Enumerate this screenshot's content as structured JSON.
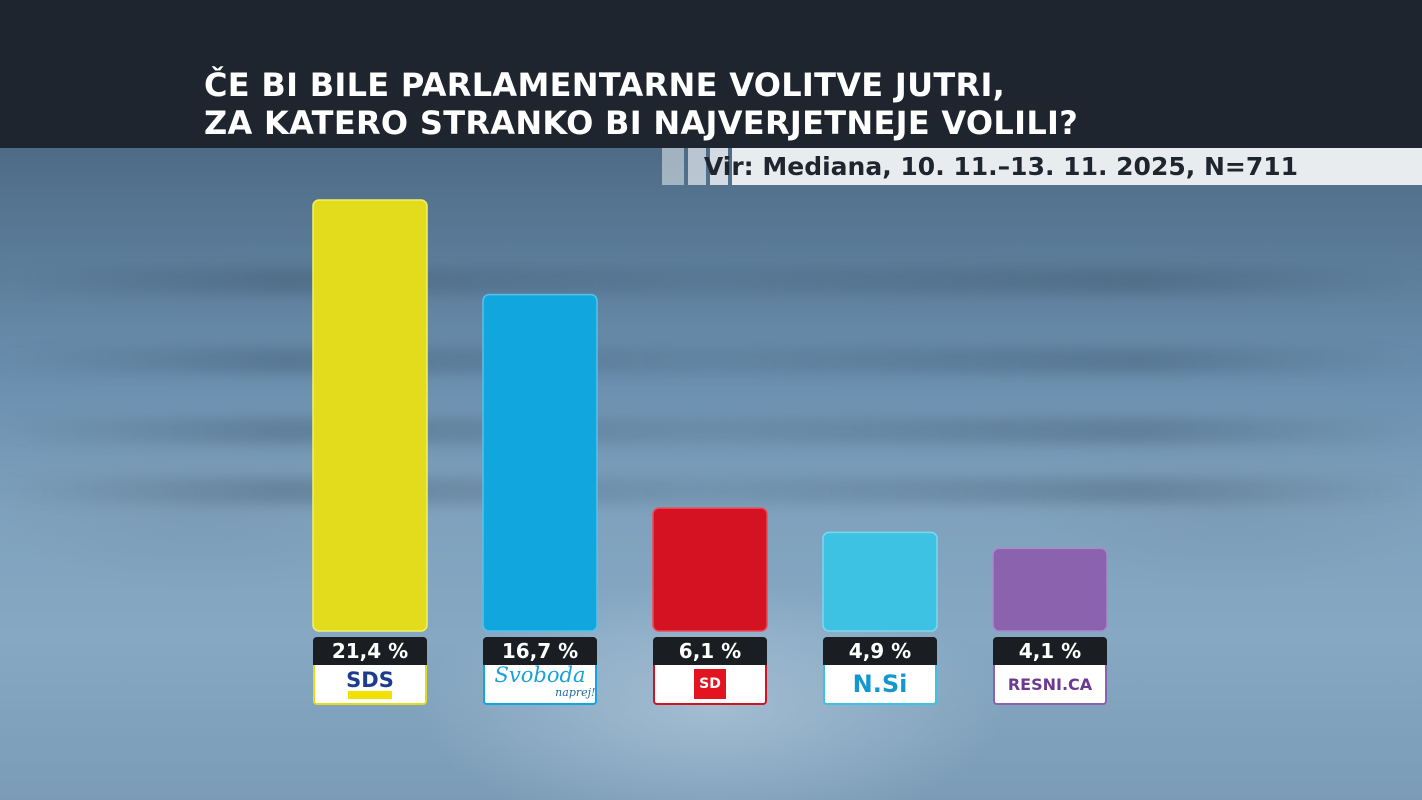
{
  "title": {
    "line1": "ČE BI BILE PARLAMENTARNE VOLITVE JUTRI,",
    "line2": "ZA KATERO STRANKO BI NAJVERJETNEJE VOLILI?"
  },
  "source": "Vir: Mediana, 10. 11.–13. 11. 2025, N=711",
  "chart_data": {
    "type": "bar",
    "title": "ČE BI BILE PARLAMENTARNE VOLITVE JUTRI, ZA KATERO STRANKO BI NAJVERJETNEJE VOLILI?",
    "categories": [
      "SDS",
      "Svoboda",
      "SD",
      "N.Si",
      "RESNI.CA"
    ],
    "values": [
      21.4,
      16.7,
      6.1,
      4.9,
      4.1
    ],
    "labels": [
      "21,4 %",
      "16,7 %",
      "6,1 %",
      "4,9 %",
      "4,1 %"
    ],
    "colors": [
      "#e2dc1c",
      "#11a6de",
      "#d51222",
      "#3ec2e4",
      "#8a62ad"
    ],
    "ylim": [
      0,
      21.4
    ],
    "grid": false,
    "legend": "none"
  },
  "logos": {
    "sds": "SDS",
    "svoboda": "Svoboda",
    "svoboda_sub": "naprej!",
    "sd": "SD",
    "nsi": "N.Si",
    "resni": "RESNI.CA"
  }
}
